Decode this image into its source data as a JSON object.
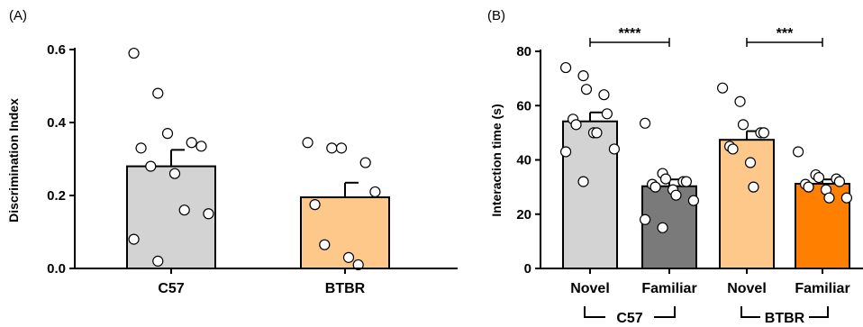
{
  "colors": {
    "c57": "#d3d3d3",
    "c57_dark": "#7a7a7a",
    "btbr": "#fdc88a",
    "btbr_dark": "#ff7f00",
    "axis": "#000000",
    "point_fill": "#ffffff"
  },
  "chart_data": [
    {
      "type": "bar",
      "panel_label": "(A)",
      "ylabel": "Discrimination Index",
      "xlabel": "",
      "ylim": [
        0,
        0.6
      ],
      "yticks": [
        0,
        0.2,
        0.4,
        0.6
      ],
      "ytick_labels": [
        "0.0",
        "0.2",
        "0.4",
        "0.6"
      ],
      "categories": [
        "C57",
        "BTBR"
      ],
      "values": [
        0.28,
        0.195
      ],
      "sem": [
        0.045,
        0.04
      ],
      "bar_colors": [
        "#d3d3d3",
        "#fdc88a"
      ],
      "points": [
        [
          0.59,
          0.48,
          0.37,
          0.345,
          0.335,
          0.33,
          0.28,
          0.26,
          0.16,
          0.15,
          0.08,
          0.02
        ],
        [
          0.345,
          0.33,
          0.33,
          0.29,
          0.21,
          0.175,
          0.065,
          0.03,
          0.01
        ]
      ],
      "grid": false,
      "legend": "none"
    },
    {
      "type": "bar",
      "panel_label": "(B)",
      "ylabel": "Interaction time (s)",
      "xlabel": "",
      "ylim": [
        0,
        80
      ],
      "yticks": [
        0,
        20,
        40,
        60,
        80
      ],
      "ytick_labels": [
        "0",
        "20",
        "40",
        "60",
        "80"
      ],
      "categories": [
        "Novel",
        "Familiar",
        "Novel",
        "Familiar"
      ],
      "values": [
        54.2,
        30.3,
        47.4,
        31.2
      ],
      "sem": [
        3.3,
        2.5,
        3.2,
        1.6
      ],
      "bar_colors": [
        "#d3d3d3",
        "#7a7a7a",
        "#fdc88a",
        "#ff7f00"
      ],
      "points": [
        [
          74,
          71,
          66,
          64,
          57,
          55,
          53,
          50,
          50,
          44,
          43,
          32
        ],
        [
          53.5,
          35,
          33,
          32,
          32,
          31,
          30,
          29,
          27,
          25,
          18,
          15
        ],
        [
          66.5,
          61.5,
          53,
          50,
          50,
          45,
          44,
          39,
          30
        ],
        [
          43,
          34.5,
          33.5,
          33,
          32,
          31,
          30,
          29,
          26,
          26
        ]
      ],
      "significance": [
        {
          "from": 0,
          "to": 1,
          "label": "****"
        },
        {
          "from": 2,
          "to": 3,
          "label": "***"
        }
      ],
      "groups": [
        {
          "label": "C57",
          "from": 0,
          "to": 1
        },
        {
          "label": "BTBR",
          "from": 2,
          "to": 3
        }
      ],
      "grid": false,
      "legend": "none"
    }
  ]
}
